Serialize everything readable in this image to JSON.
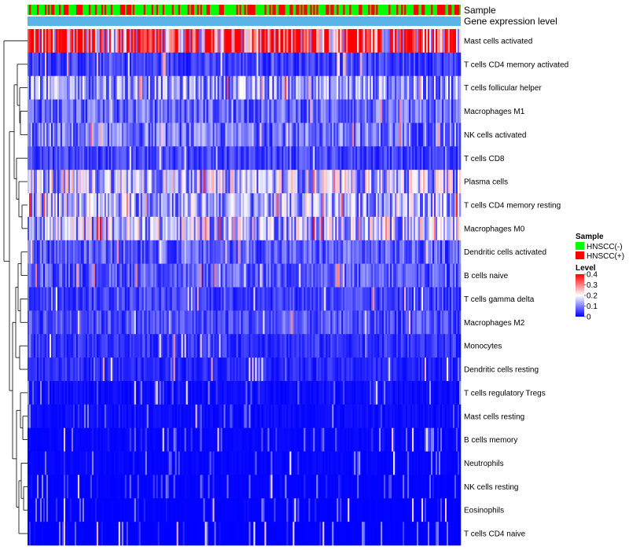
{
  "chart_data": {
    "type": "heatmap",
    "title": "",
    "annotations": [
      "Sample",
      "Gene expression level"
    ],
    "rows": [
      "Mast cells activated",
      "T cells CD4 memory activated",
      "T cells follicular helper",
      "Macrophages M1",
      "NK cells activated",
      "T cells CD8",
      "Plasma cells",
      "T cells CD4 memory resting",
      "Macrophages M0",
      "Dendritic cells activated",
      "B cells naive",
      "T cells gamma delta",
      "Macrophages M2",
      "Monocytes",
      "Dendritic cells resting",
      "T cells regulatory  Tregs",
      "Mast cells resting",
      "B cells memory",
      "Neutrophils",
      "NK cells resting",
      "Eosinophils",
      "T cells CD4 naive"
    ],
    "row_typical_levels": [
      0.34,
      0.05,
      0.12,
      0.08,
      0.09,
      0.05,
      0.15,
      0.13,
      0.15,
      0.07,
      0.07,
      0.05,
      0.06,
      0.04,
      0.03,
      0.02,
      0.02,
      0.01,
      0.01,
      0.005,
      0.003,
      0.002
    ],
    "legend": {
      "sample": {
        "title": "Sample",
        "entries": [
          {
            "label": "HNSCC(-)",
            "color": "#00ff00"
          },
          {
            "label": "HNSCC(+)",
            "color": "#ff0000"
          }
        ]
      },
      "level": {
        "title": "Level",
        "ticks": [
          "0.4",
          "0.3",
          "0.2",
          "0.1",
          "0"
        ],
        "tick_values": [
          0.4,
          0.3,
          0.2,
          0.1,
          0
        ],
        "range": [
          0,
          0.4
        ],
        "colors": [
          "#0000ff",
          "#ffffff",
          "#ff0000"
        ]
      }
    },
    "annotation_colors": {
      "gene_expression_level": "#5ab4e8"
    },
    "legend_position": "right"
  }
}
